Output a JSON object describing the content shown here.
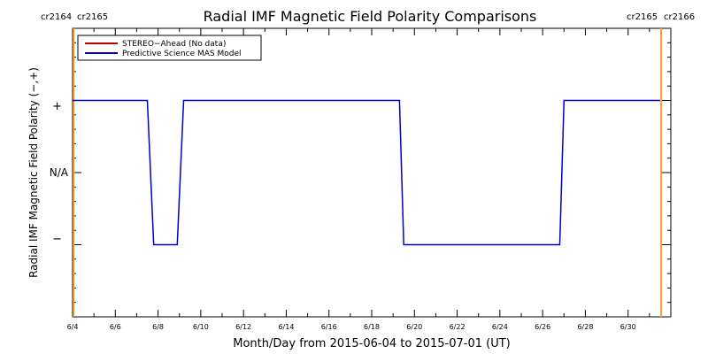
{
  "chart_data": {
    "type": "line",
    "title": "Radial IMF Magnetic Field Polarity Comparisons",
    "xlabel": "Month/Day from 2015-06-04 to 2015-07-01 (UT)",
    "ylabel": "Radial IMF Magnetic Field Polarity (−,+)",
    "x_range": [
      "2015-06-04",
      "2015-07-02"
    ],
    "x_ticks": [
      "6/4",
      "6/6",
      "6/8",
      "6/10",
      "6/12",
      "6/14",
      "6/16",
      "6/18",
      "6/20",
      "6/22",
      "6/24",
      "6/26",
      "6/28",
      "6/30"
    ],
    "y_ticks": [
      "−",
      "N/A",
      "+"
    ],
    "ylim": [
      -2,
      2
    ],
    "legend_position": "top-left",
    "series": [
      {
        "name": "STEREO−Ahead (No data)",
        "color": "#c00000",
        "x": [],
        "y": []
      },
      {
        "name": "Predictive Science MAS Model",
        "color": "#0000cc",
        "x": [
          "2015-06-04",
          "2015-06-07.5",
          "2015-06-07.8",
          "2015-06-08.9",
          "2015-06-09.2",
          "2015-06-19.3",
          "2015-06-19.5",
          "2015-06-26.8",
          "2015-06-27.0",
          "2015-07-01.5"
        ],
        "y": [
          1,
          1,
          -1,
          -1,
          1,
          1,
          -1,
          -1,
          1,
          1
        ]
      }
    ],
    "rotation_markers": {
      "color": "#f0a030",
      "left": {
        "date": "2015-06-04.05",
        "labels": [
          "cr2164",
          "cr2165"
        ]
      },
      "right": {
        "date": "2015-07-01.55",
        "labels": [
          "cr2165",
          "cr2166"
        ]
      }
    }
  }
}
